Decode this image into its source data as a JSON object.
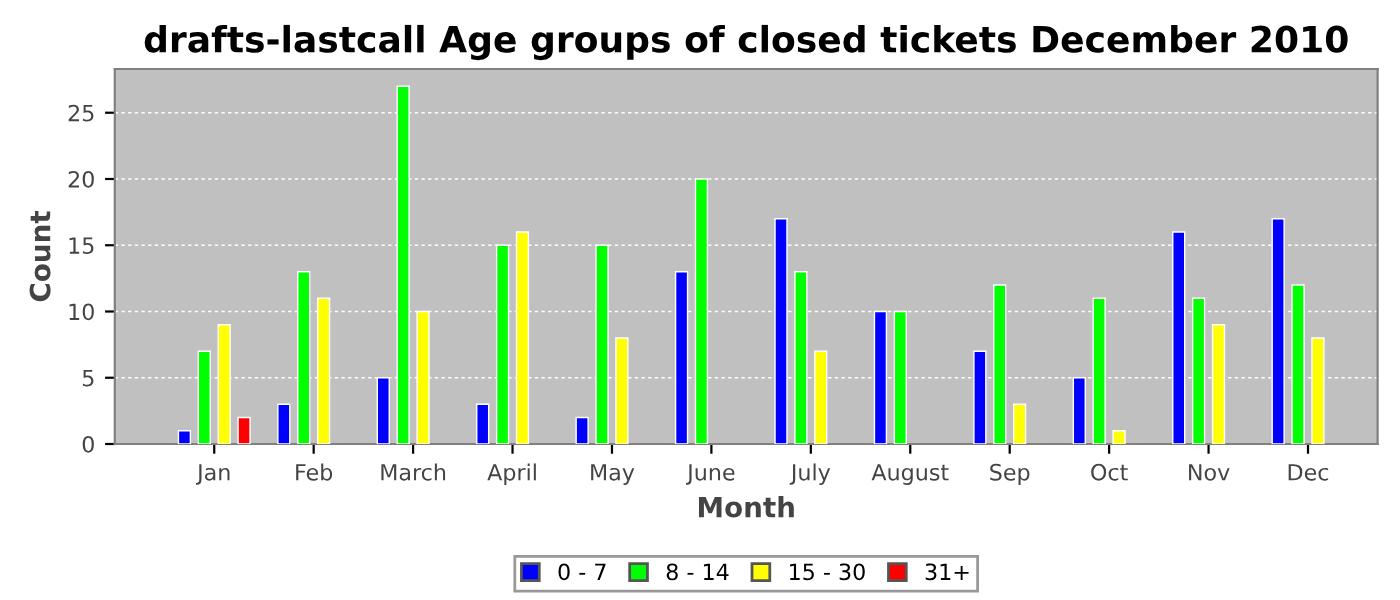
{
  "chart_data": {
    "type": "bar",
    "title": "drafts-lastcall Age groups of closed tickets December 2010",
    "xlabel": "Month",
    "ylabel": "Count",
    "categories": [
      "Jan",
      "Feb",
      "March",
      "April",
      "May",
      "June",
      "July",
      "August",
      "Sep",
      "Oct",
      "Nov",
      "Dec"
    ],
    "series": [
      {
        "name": "0 - 7",
        "color": "#0000ff",
        "values": [
          1,
          3,
          5,
          3,
          2,
          13,
          17,
          10,
          7,
          5,
          16,
          17
        ]
      },
      {
        "name": "8 - 14",
        "color": "#00ff00",
        "values": [
          7,
          13,
          27,
          15,
          15,
          20,
          13,
          10,
          12,
          11,
          11,
          12
        ]
      },
      {
        "name": "15 - 30",
        "color": "#ffff00",
        "values": [
          9,
          11,
          10,
          16,
          8,
          null,
          7,
          null,
          3,
          1,
          9,
          8
        ]
      },
      {
        "name": "31+",
        "color": "#ff0000",
        "values": [
          2,
          null,
          null,
          null,
          null,
          null,
          null,
          null,
          null,
          null,
          null,
          null
        ]
      }
    ],
    "ylim": [
      0,
      28.3
    ],
    "yticks": [
      0,
      5,
      10,
      15,
      20,
      25
    ],
    "grid": "y",
    "legend": "bottom"
  }
}
